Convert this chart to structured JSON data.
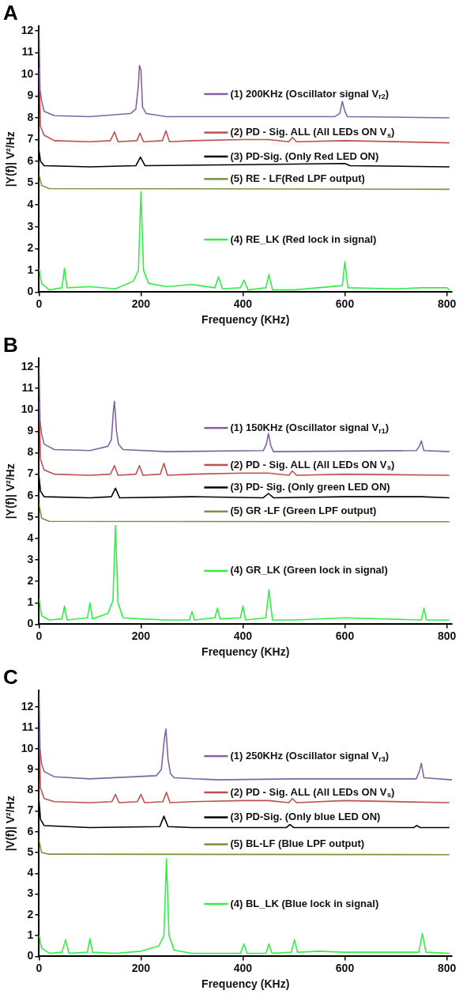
{
  "chart_data": [
    {
      "type": "line",
      "title": "A",
      "xlabel": "Frequency (KHz)",
      "ylabel": "|Y(f)| V²/Hz",
      "xlim": [
        0,
        810
      ],
      "xticks": [
        0,
        200,
        400,
        600,
        800
      ],
      "ylim": [
        0,
        12.2
      ],
      "yticks": [
        0,
        1,
        2,
        3,
        4,
        5,
        6,
        7,
        8,
        9,
        10,
        11,
        12
      ],
      "legend": "right",
      "series": [
        {
          "name": "(1) 200KHz (Oscillator signal V$_{r2}$)",
          "color": "#8064a2",
          "x": [
            0,
            2,
            5,
            10,
            30,
            100,
            180,
            190,
            195,
            197,
            200,
            203,
            210,
            250,
            400,
            580,
            590,
            595,
            600,
            605,
            805
          ],
          "values": [
            12.0,
            9.3,
            8.8,
            8.3,
            8.1,
            8.05,
            8.2,
            8.4,
            9.5,
            10.4,
            10.2,
            8.5,
            8.2,
            8.05,
            8.05,
            8.05,
            8.2,
            8.75,
            8.3,
            8.05,
            8.0
          ]
        },
        {
          "name": "(2) PD - Sig. ALL (All LEDs ON V$_{s}$)",
          "color": "#c0504d",
          "x": [
            0,
            3,
            10,
            30,
            100,
            140,
            148,
            155,
            192,
            198,
            205,
            242,
            249,
            256,
            300,
            400,
            450,
            490,
            497,
            505,
            600,
            805
          ],
          "values": [
            10.3,
            7.6,
            7.2,
            6.95,
            6.9,
            6.95,
            7.35,
            6.9,
            6.95,
            7.3,
            6.9,
            6.95,
            7.4,
            6.9,
            6.95,
            7.0,
            7.0,
            6.9,
            7.1,
            6.9,
            6.95,
            6.85
          ]
        },
        {
          "name": "(3) PD-Sig. (Only Red LED ON)",
          "color": "#000000",
          "x": [
            0,
            3,
            10,
            100,
            190,
            199,
            208,
            400,
            600,
            610,
            805
          ],
          "values": [
            6.5,
            6.0,
            5.8,
            5.75,
            5.8,
            6.2,
            5.8,
            5.85,
            5.9,
            5.8,
            5.75
          ]
        },
        {
          "name": "(5) RE - LF(Red LPF output)",
          "color": "#77933c",
          "x": [
            0,
            5,
            20,
            805
          ],
          "values": [
            5.4,
            4.9,
            4.75,
            4.72
          ]
        },
        {
          "name": "(4) RE_LK (Red lock in signal)",
          "color": "#33ee44",
          "x": [
            0,
            5,
            20,
            45,
            50,
            55,
            100,
            150,
            185,
            195,
            200,
            205,
            215,
            250,
            300,
            345,
            352,
            360,
            395,
            402,
            410,
            445,
            451,
            458,
            500,
            595,
            600,
            606,
            700,
            750,
            800,
            805
          ],
          "values": [
            1.1,
            0.4,
            0.1,
            0.2,
            1.1,
            0.2,
            0.25,
            0.15,
            0.5,
            1.0,
            4.6,
            1.0,
            0.4,
            0.25,
            0.35,
            0.2,
            0.7,
            0.15,
            0.2,
            0.55,
            0.1,
            0.2,
            0.8,
            0.1,
            0.1,
            0.3,
            1.4,
            0.2,
            0.15,
            0.2,
            0.2,
            0.1
          ]
        }
      ]
    },
    {
      "type": "line",
      "title": "B",
      "xlabel": "Frequency (KHz)",
      "ylabel": "|Y(f)| V²/Hz",
      "xlim": [
        0,
        810
      ],
      "xticks": [
        0,
        200,
        400,
        600,
        800
      ],
      "ylim": [
        0,
        12.4
      ],
      "yticks": [
        0,
        1,
        2,
        3,
        4,
        5,
        6,
        7,
        8,
        9,
        10,
        11,
        12
      ],
      "legend": "right",
      "series": [
        {
          "name": "(1) 150KHz (Oscillator signal V$_{r1}$)",
          "color": "#8064a2",
          "x": [
            0,
            2,
            5,
            10,
            30,
            100,
            135,
            142,
            146,
            148,
            152,
            156,
            165,
            250,
            440,
            446,
            450,
            455,
            460,
            740,
            746,
            750,
            755,
            805
          ],
          "values": [
            12.0,
            9.5,
            8.9,
            8.4,
            8.15,
            8.1,
            8.3,
            8.6,
            10.0,
            10.4,
            9.0,
            8.4,
            8.15,
            8.05,
            8.1,
            8.4,
            8.9,
            8.3,
            8.05,
            8.1,
            8.3,
            8.55,
            8.1,
            8.05
          ]
        },
        {
          "name": "(2) PD - Sig. ALL (All LEDs ON V$_{s}$)",
          "color": "#c0504d",
          "x": [
            0,
            3,
            10,
            30,
            100,
            140,
            148,
            155,
            190,
            197,
            204,
            238,
            245,
            252,
            300,
            400,
            450,
            490,
            497,
            505,
            600,
            805
          ],
          "values": [
            10.4,
            7.7,
            7.2,
            7.0,
            6.95,
            7.0,
            7.4,
            6.95,
            7.0,
            7.4,
            6.95,
            7.0,
            7.5,
            6.95,
            7.0,
            7.05,
            7.05,
            6.95,
            7.15,
            6.95,
            7.0,
            6.95
          ]
        },
        {
          "name": "(3) PD- Sig. (Only green LED ON)",
          "color": "#000000",
          "x": [
            0,
            3,
            10,
            100,
            142,
            150,
            158,
            300,
            440,
            450,
            460,
            600,
            750,
            805
          ],
          "values": [
            6.9,
            6.2,
            5.95,
            5.9,
            5.95,
            6.35,
            5.9,
            5.95,
            5.9,
            6.1,
            5.9,
            5.95,
            5.95,
            5.9
          ]
        },
        {
          "name": "(5) GR -LF (Green LPF output)",
          "color": "#77933c",
          "x": [
            0,
            5,
            20,
            805
          ],
          "values": [
            5.6,
            4.95,
            4.8,
            4.78
          ]
        },
        {
          "name": "(4) GR_LK (Green lock in signal)",
          "color": "#33ee44",
          "x": [
            0,
            5,
            20,
            45,
            50,
            55,
            95,
            100,
            105,
            135,
            145,
            150,
            155,
            165,
            200,
            250,
            295,
            300,
            305,
            345,
            350,
            355,
            395,
            400,
            405,
            445,
            451,
            458,
            500,
            600,
            750,
            755,
            760,
            805
          ],
          "values": [
            1.2,
            0.4,
            0.2,
            0.25,
            0.85,
            0.2,
            0.3,
            1.0,
            0.25,
            0.5,
            1.1,
            4.6,
            1.0,
            0.3,
            0.25,
            0.2,
            0.2,
            0.6,
            0.2,
            0.3,
            0.75,
            0.25,
            0.3,
            0.85,
            0.2,
            0.3,
            1.6,
            0.2,
            0.2,
            0.3,
            0.2,
            0.75,
            0.2,
            0.2
          ]
        }
      ]
    },
    {
      "type": "line",
      "title": "C",
      "xlabel": "Frequency (KHz)",
      "ylabel": "|V(f)| V²/Hz",
      "xlim": [
        0,
        810
      ],
      "xticks": [
        0,
        200,
        400,
        600,
        800
      ],
      "ylim": [
        0,
        12.8
      ],
      "yticks": [
        0,
        1,
        2,
        3,
        4,
        5,
        6,
        7,
        8,
        9,
        10,
        11,
        12
      ],
      "legend": "right",
      "series": [
        {
          "name": "(1) 250KHz (Oscillator signal V$_{r3}$)",
          "color": "#8064a2",
          "x": [
            0,
            2,
            5,
            10,
            30,
            100,
            230,
            240,
            246,
            249,
            253,
            258,
            265,
            350,
            500,
            740,
            746,
            750,
            755,
            810
          ],
          "values": [
            12.7,
            10.0,
            9.3,
            8.9,
            8.65,
            8.55,
            8.7,
            9.0,
            10.5,
            10.95,
            9.5,
            8.8,
            8.6,
            8.5,
            8.55,
            8.55,
            8.9,
            9.3,
            8.6,
            8.5
          ]
        },
        {
          "name": "(2) PD - Sig. ALL (All LEDs ON V$_{s}$)",
          "color": "#c0504d",
          "x": [
            0,
            3,
            10,
            30,
            100,
            143,
            150,
            157,
            193,
            200,
            207,
            243,
            250,
            257,
            300,
            400,
            450,
            490,
            497,
            505,
            600,
            805
          ],
          "values": [
            10.9,
            8.1,
            7.6,
            7.45,
            7.4,
            7.45,
            7.8,
            7.4,
            7.45,
            7.8,
            7.4,
            7.45,
            7.9,
            7.4,
            7.45,
            7.5,
            7.5,
            7.4,
            7.6,
            7.4,
            7.5,
            7.4
          ]
        },
        {
          "name": "(3) PD-Sig. (Only blue LED ON)",
          "color": "#000000",
          "x": [
            0,
            3,
            10,
            100,
            237,
            245,
            253,
            300,
            485,
            492,
            500,
            735,
            741,
            748,
            805
          ],
          "values": [
            7.5,
            6.6,
            6.3,
            6.2,
            6.25,
            6.75,
            6.25,
            6.2,
            6.2,
            6.35,
            6.2,
            6.2,
            6.3,
            6.2,
            6.2
          ]
        },
        {
          "name": "(5) BL-LF (Blue LPF output)",
          "color": "#77933c",
          "x": [
            0,
            5,
            20,
            805
          ],
          "values": [
            5.6,
            5.0,
            4.92,
            4.9
          ]
        },
        {
          "name": "(4) BL_LK (Blue lock in signal)",
          "color": "#33ee44",
          "x": [
            0,
            5,
            20,
            45,
            52,
            59,
            95,
            100,
            105,
            150,
            200,
            235,
            245,
            250,
            255,
            265,
            300,
            350,
            395,
            402,
            408,
            445,
            451,
            457,
            495,
            501,
            507,
            550,
            600,
            745,
            752,
            759,
            805
          ],
          "values": [
            1.0,
            0.4,
            0.15,
            0.2,
            0.8,
            0.15,
            0.2,
            0.85,
            0.2,
            0.15,
            0.25,
            0.5,
            1.0,
            4.7,
            1.0,
            0.3,
            0.15,
            0.15,
            0.15,
            0.6,
            0.15,
            0.15,
            0.6,
            0.15,
            0.2,
            0.8,
            0.2,
            0.25,
            0.2,
            0.2,
            1.1,
            0.2,
            0.15
          ]
        }
      ]
    }
  ]
}
